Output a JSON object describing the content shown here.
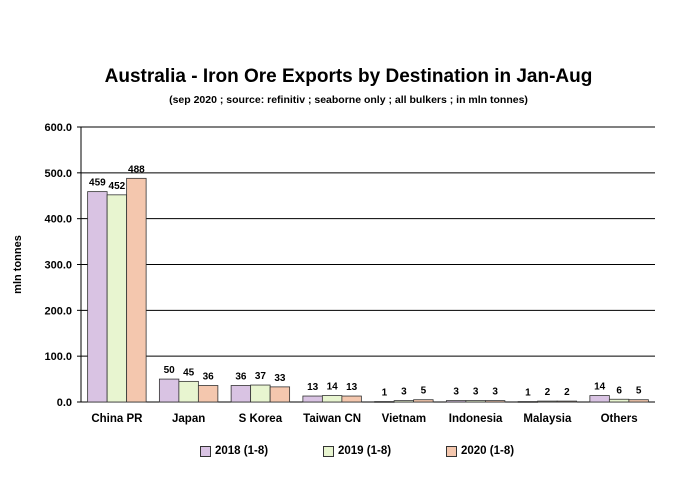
{
  "chart_data": {
    "type": "bar",
    "title": "Australia - Iron Ore Exports by Destination in Jan-Aug",
    "subtitle": "(sep 2020 ; source: refinitiv ; seaborne only ; all bulkers ; in mln tonnes)",
    "xlabel": "",
    "ylabel": "mln tonnes",
    "ylim": [
      0,
      600
    ],
    "yticks": [
      "0.0",
      "100.0",
      "200.0",
      "300.0",
      "400.0",
      "500.0",
      "600.0"
    ],
    "grid": true,
    "legend_position": "bottom",
    "categories": [
      "China PR",
      "Japan",
      "S Korea",
      "Taiwan CN",
      "Vietnam",
      "Indonesia",
      "Malaysia",
      "Others"
    ],
    "series": [
      {
        "name": "2018 (1-8)",
        "color": "#D9C3E3",
        "values": [
          459,
          50,
          36,
          13,
          1,
          3,
          1,
          14
        ]
      },
      {
        "name": "2019 (1-8)",
        "color": "#E8F5D0",
        "values": [
          452,
          45,
          37,
          14,
          3,
          3,
          2,
          6
        ]
      },
      {
        "name": "2020 (1-8)",
        "color": "#F4C7AE",
        "values": [
          488,
          36,
          33,
          13,
          5,
          3,
          2,
          5
        ]
      }
    ]
  }
}
